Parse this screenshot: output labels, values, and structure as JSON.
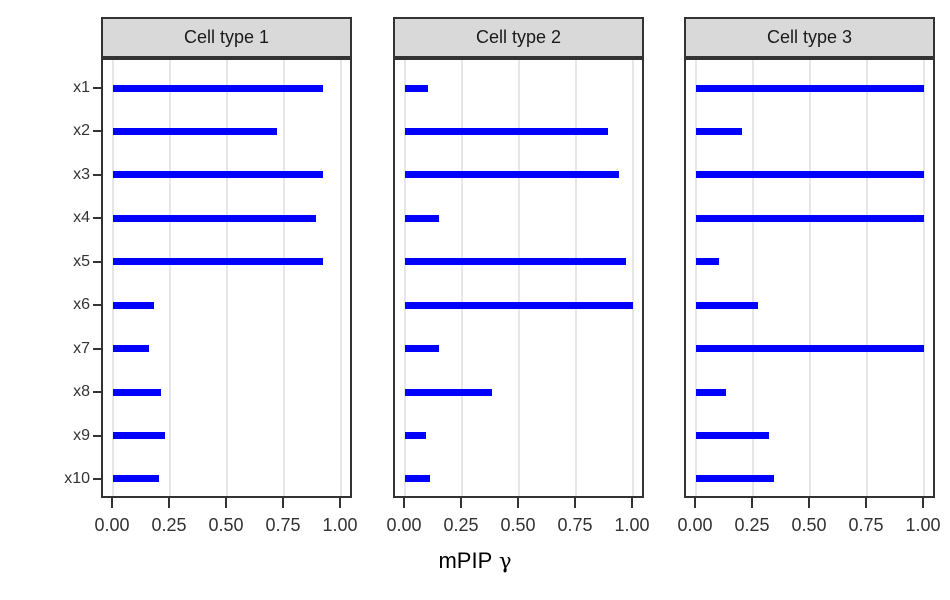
{
  "chart_data": {
    "type": "bar",
    "orientation": "horizontal",
    "title": "",
    "xlabel": "mPIP γ",
    "xlabel_main": "mPIP",
    "xlabel_symbol": "γ",
    "ylabel": "",
    "xlim": [
      0,
      1
    ],
    "x_ticks": [
      "0.00",
      "0.25",
      "0.50",
      "0.75",
      "1.00"
    ],
    "x_tick_values": [
      0,
      0.25,
      0.5,
      0.75,
      1.0
    ],
    "categories": [
      "x1",
      "x2",
      "x3",
      "x4",
      "x5",
      "x6",
      "x7",
      "x8",
      "x9",
      "x10"
    ],
    "series": [
      {
        "name": "Cell type 1",
        "values": [
          0.92,
          0.72,
          0.92,
          0.89,
          0.92,
          0.18,
          0.16,
          0.21,
          0.23,
          0.2
        ]
      },
      {
        "name": "Cell type 2",
        "values": [
          0.1,
          0.89,
          0.94,
          0.15,
          0.97,
          1.0,
          0.15,
          0.38,
          0.09,
          0.11
        ]
      },
      {
        "name": "Cell type 3",
        "values": [
          1.0,
          0.2,
          1.0,
          1.0,
          0.1,
          0.27,
          1.0,
          0.13,
          0.32,
          0.34
        ]
      }
    ],
    "grid": "vertical-major-only",
    "legend": "none",
    "bar_color": "#0000FF",
    "gridline_color": "#E6E6E6",
    "panel_border_color": "#333333",
    "strip_bg_color": "#D9D9D9",
    "tick_text_color": "#333333"
  }
}
